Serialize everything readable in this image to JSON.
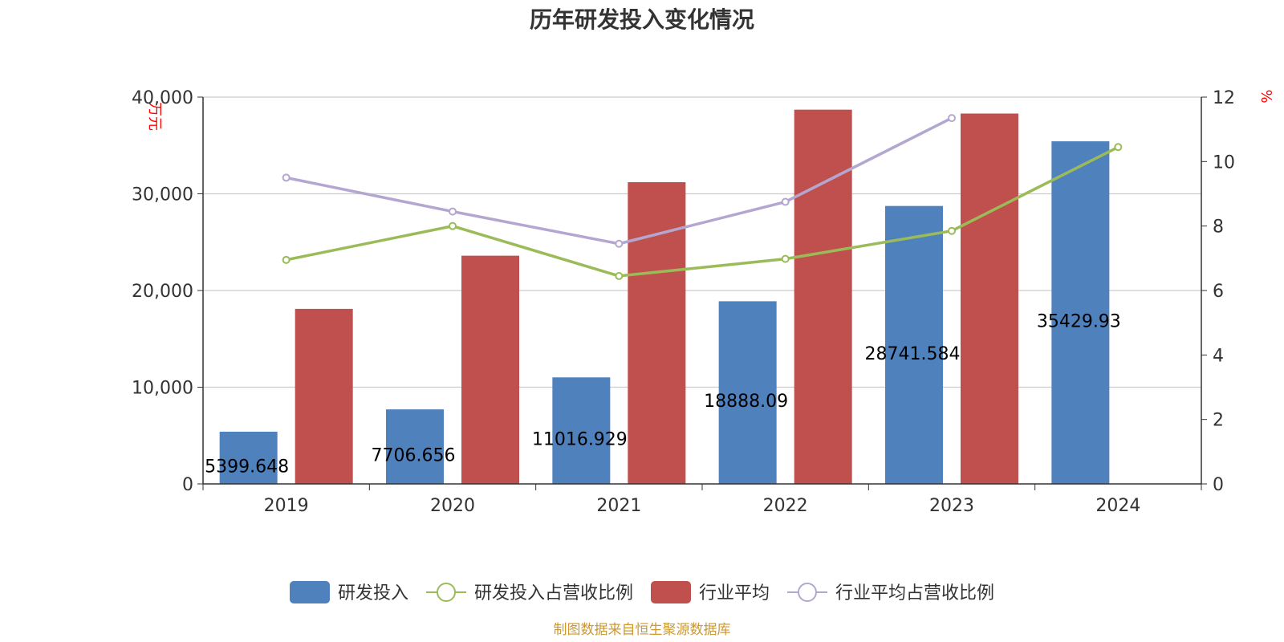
{
  "chart_data": {
    "type": "bar",
    "title": "历年研发投入变化情况",
    "categories": [
      "2019",
      "2020",
      "2021",
      "2022",
      "2023",
      "2024"
    ],
    "y_left": {
      "unit": "万元",
      "min": 0,
      "max": 40000,
      "ticks": [
        "0",
        "10,000",
        "20,000",
        "30,000",
        "40,000"
      ]
    },
    "y_right": {
      "unit": "%",
      "min": 0,
      "max": 12,
      "ticks": [
        "0",
        "2",
        "4",
        "6",
        "8",
        "10",
        "12"
      ]
    },
    "grid": true,
    "legend_position": "bottom",
    "series": [
      {
        "name": "研发投入",
        "kind": "bar",
        "axis": "left",
        "color": "#4f81bd",
        "values": [
          5399.648,
          7706.656,
          11016.929,
          18888.09,
          28741.584,
          35429.93
        ],
        "labels": [
          "5399.648",
          "7706.656",
          "11016.929",
          "18888.09",
          "28741.584",
          "35429.93"
        ]
      },
      {
        "name": "研发投入占营收比例",
        "kind": "line",
        "axis": "right",
        "color": "#9bbb59",
        "values": [
          6.95,
          8.0,
          6.45,
          6.98,
          7.85,
          10.45
        ]
      },
      {
        "name": "行业平均",
        "kind": "bar",
        "axis": "left",
        "color": "#c0504d",
        "values": [
          18100,
          23600,
          31200,
          38700,
          38300,
          null
        ]
      },
      {
        "name": "行业平均占营收比例",
        "kind": "line",
        "axis": "right",
        "color": "#b3a7d1",
        "values": [
          9.5,
          8.45,
          7.45,
          8.75,
          11.35,
          null
        ]
      }
    ],
    "source_note": "制图数据来自恒生聚源数据库"
  }
}
